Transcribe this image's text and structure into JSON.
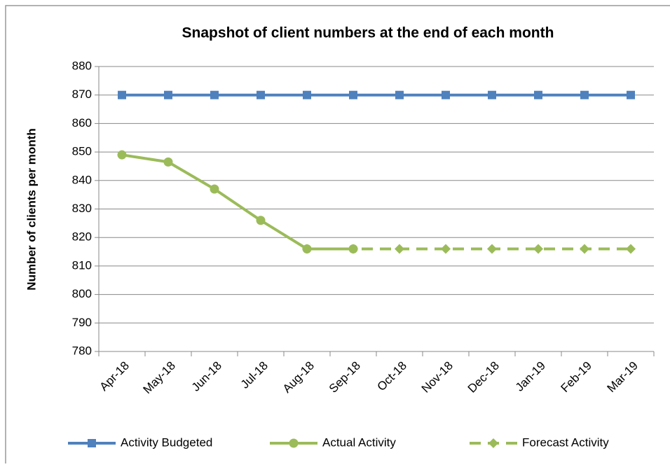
{
  "chart_data": {
    "type": "line",
    "title": "Snapshot of client numbers at the end of each month",
    "y_label": "Number of clients per month",
    "categories": [
      "Apr-18",
      "May-18",
      "Jun-18",
      "Jul-18",
      "Aug-18",
      "Sep-18",
      "Oct-18",
      "Nov-18",
      "Dec-18",
      "Jan-19",
      "Feb-19",
      "Mar-19"
    ],
    "series": [
      {
        "name": "Activity Budgeted",
        "color": "#4f81bd",
        "marker": "square",
        "dashed": false,
        "values": [
          870,
          870,
          870,
          870,
          870,
          870,
          870,
          870,
          870,
          870,
          870,
          870
        ]
      },
      {
        "name": "Actual Activity",
        "color": "#9bbb59",
        "marker": "circle",
        "dashed": false,
        "values": [
          849,
          846.5,
          837,
          826,
          816,
          816,
          null,
          null,
          null,
          null,
          null,
          null
        ]
      },
      {
        "name": "Forecast Activity",
        "color": "#9bbb59",
        "marker": "diamond",
        "dashed": true,
        "values": [
          null,
          null,
          null,
          null,
          816,
          816,
          816,
          816,
          816,
          816,
          816,
          816
        ]
      }
    ],
    "ylim": [
      780,
      880
    ],
    "yticks": [
      780,
      790,
      800,
      810,
      820,
      830,
      840,
      850,
      860,
      870,
      880
    ],
    "grid": true,
    "legend": "bottom"
  }
}
